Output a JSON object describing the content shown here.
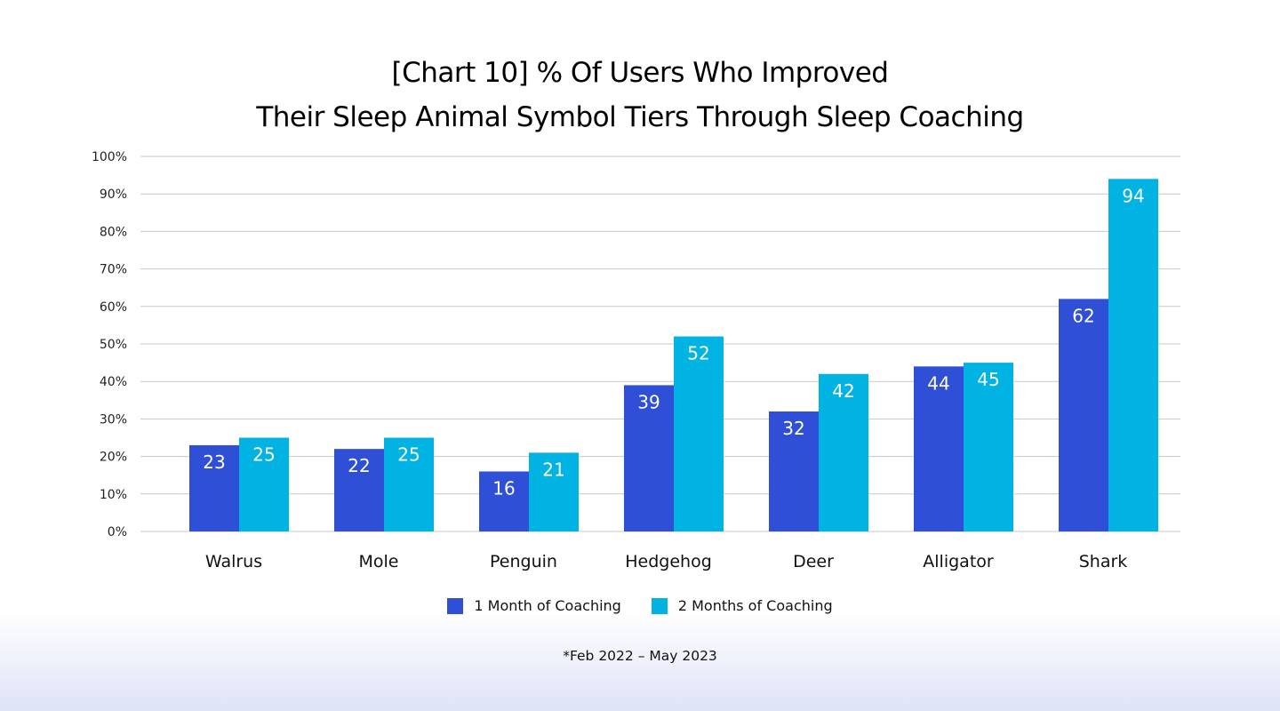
{
  "chart_data": {
    "type": "bar",
    "title_line1": "[Chart 10] % Of Users Who Improved",
    "title_line2": "Their Sleep Animal Symbol Tiers Through Sleep Coaching",
    "categories": [
      "Walrus",
      "Mole",
      "Penguin",
      "Hedgehog",
      "Deer",
      "Alligator",
      "Shark"
    ],
    "series": [
      {
        "name": "1 Month of Coaching",
        "color": "#2e4fd6",
        "values": [
          23,
          22,
          16,
          39,
          32,
          44,
          62
        ]
      },
      {
        "name": "2 Months of Coaching",
        "color": "#00b3e3",
        "values": [
          25,
          25,
          21,
          52,
          42,
          45,
          94
        ]
      }
    ],
    "ylim": [
      0,
      100
    ],
    "yticks": [
      "0%",
      "10%",
      "20%",
      "30%",
      "40%",
      "50%",
      "60%",
      "70%",
      "80%",
      "90%",
      "100%"
    ],
    "grid": true,
    "legend_position": "bottom",
    "footnote": "*Feb 2022 – May 2023"
  }
}
